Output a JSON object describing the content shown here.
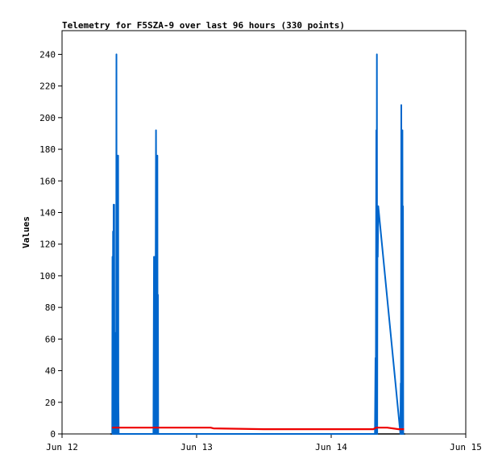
{
  "chart_data": {
    "type": "line",
    "title": "Telemetry for F5SZA-9 over last 96 hours (330 points)",
    "xlabel": "",
    "ylabel": "Values",
    "x_ticks": [
      "Jun 12",
      "Jun 13",
      "Jun 14",
      "Jun 15"
    ],
    "xlim": [
      "Jun 12 00:00",
      "Jun 15 00:00"
    ],
    "y_ticks": [
      0,
      20,
      40,
      60,
      80,
      100,
      120,
      140,
      160,
      180,
      200,
      220,
      240
    ],
    "ylim": [
      0,
      255
    ],
    "grid": false,
    "legend": "none",
    "series": [
      {
        "color": "#0066cc",
        "points": [
          [
            8.95,
            0
          ],
          [
            9.0,
            112
          ],
          [
            9.05,
            0
          ],
          [
            9.1,
            128
          ],
          [
            9.15,
            0
          ],
          [
            9.2,
            145
          ],
          [
            9.25,
            30
          ],
          [
            9.3,
            145
          ],
          [
            9.35,
            0
          ],
          [
            9.4,
            32
          ],
          [
            9.45,
            0
          ],
          [
            9.5,
            30
          ],
          [
            9.55,
            0
          ],
          [
            9.6,
            64
          ],
          [
            9.65,
            0
          ],
          [
            9.7,
            240
          ],
          [
            9.75,
            0
          ],
          [
            9.8,
            60
          ],
          [
            9.85,
            0
          ],
          [
            9.9,
            176
          ],
          [
            9.95,
            0
          ],
          [
            10.0,
            176
          ],
          [
            10.05,
            20
          ],
          [
            10.1,
            0
          ],
          [
            10.2,
            0
          ],
          [
            10.6,
            0
          ],
          [
            11.5,
            0
          ],
          [
            12.2,
            0
          ],
          [
            12.5,
            0
          ],
          [
            13.0,
            0
          ],
          [
            14.0,
            0
          ],
          [
            15.0,
            0
          ],
          [
            16.0,
            0
          ],
          [
            16.3,
            0
          ],
          [
            16.4,
            112
          ],
          [
            16.45,
            20
          ],
          [
            16.5,
            0
          ],
          [
            16.6,
            112
          ],
          [
            16.65,
            0
          ],
          [
            16.7,
            112
          ],
          [
            16.75,
            192
          ],
          [
            16.8,
            112
          ],
          [
            16.85,
            0
          ],
          [
            16.9,
            112
          ],
          [
            16.95,
            0
          ],
          [
            17.0,
            176
          ],
          [
            17.05,
            0
          ],
          [
            17.1,
            88
          ],
          [
            17.15,
            0
          ],
          [
            17.3,
            0
          ],
          [
            55.8,
            0
          ],
          [
            55.9,
            48
          ],
          [
            55.95,
            0
          ],
          [
            56.0,
            112
          ],
          [
            56.05,
            192
          ],
          [
            56.1,
            0
          ],
          [
            56.15,
            240
          ],
          [
            56.2,
            0
          ],
          [
            56.25,
            144
          ],
          [
            56.3,
            112
          ],
          [
            56.4,
            144
          ],
          [
            60.35,
            0
          ],
          [
            60.4,
            32
          ],
          [
            60.45,
            0
          ],
          [
            60.5,
            208
          ],
          [
            60.55,
            0
          ],
          [
            60.6,
            160
          ],
          [
            60.65,
            0
          ],
          [
            60.7,
            192
          ],
          [
            60.75,
            0
          ],
          [
            60.8,
            144
          ],
          [
            60.85,
            0
          ],
          [
            61.0,
            0
          ]
        ]
      },
      {
        "color": "#ee0000",
        "points": [
          [
            8.9,
            4
          ],
          [
            10.0,
            4
          ],
          [
            12.0,
            4
          ],
          [
            15.0,
            4
          ],
          [
            17.0,
            4
          ],
          [
            18.0,
            4
          ],
          [
            21.0,
            4
          ],
          [
            26.5,
            4
          ],
          [
            27.0,
            3.5
          ],
          [
            36.0,
            3
          ],
          [
            46.0,
            3
          ],
          [
            55.5,
            3
          ],
          [
            56.0,
            4
          ],
          [
            58.0,
            4
          ],
          [
            60.0,
            3
          ],
          [
            61.0,
            3
          ]
        ]
      }
    ]
  }
}
